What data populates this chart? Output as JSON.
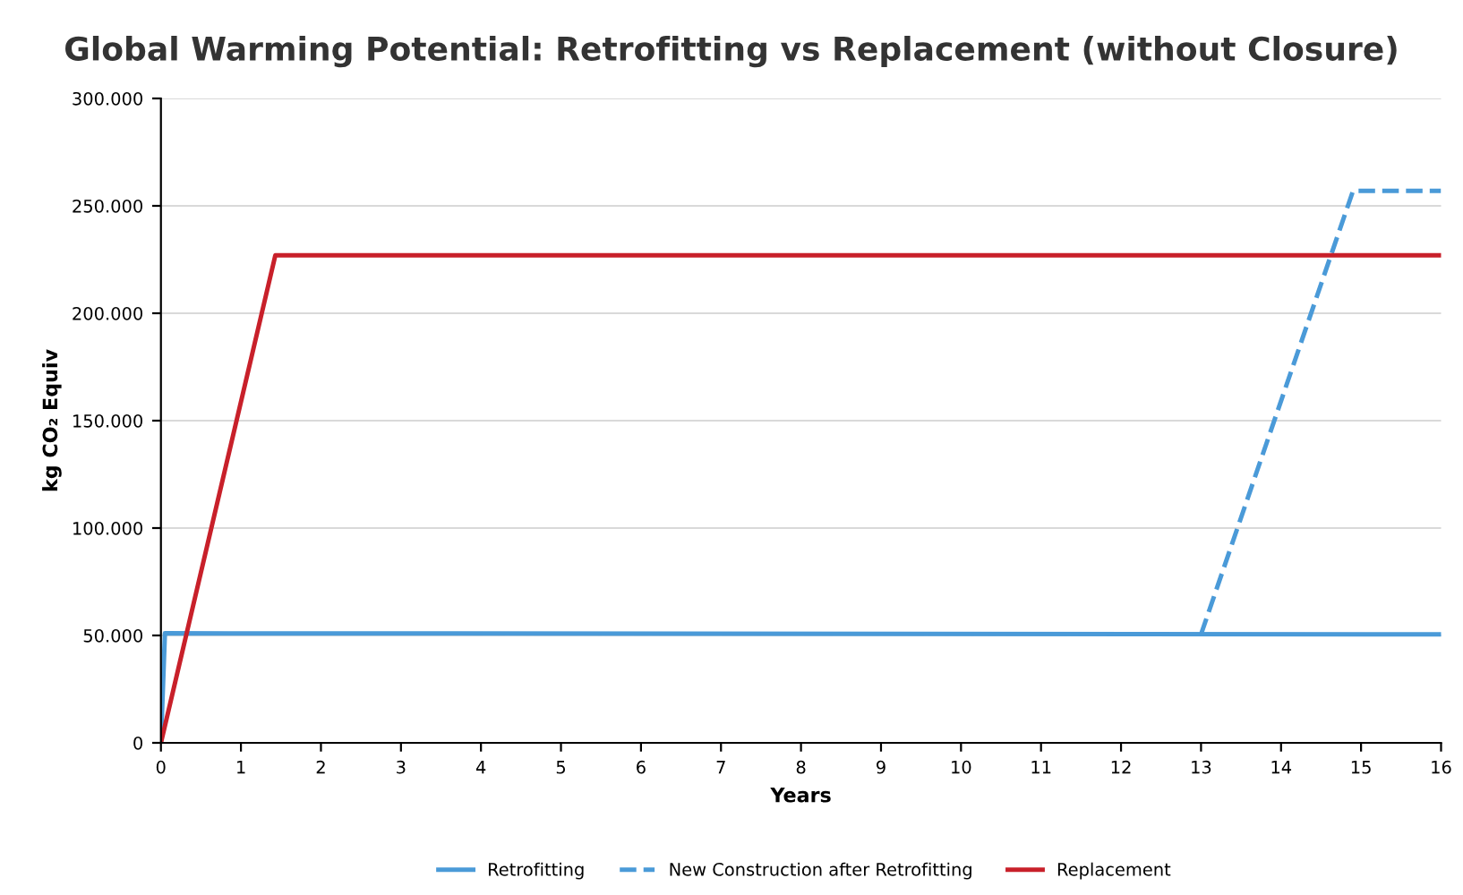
{
  "chart_data": {
    "type": "line",
    "title": "Global Warming Potential: Retrofitting vs Replacement (without Closure)",
    "xlabel": "Years",
    "ylabel": "kg CO₂ Equiv",
    "xlim": [
      0,
      16
    ],
    "xticks": [
      0,
      1,
      2,
      3,
      4,
      5,
      6,
      7,
      8,
      9,
      10,
      11,
      12,
      13,
      14,
      15,
      16
    ],
    "ylim": [
      0,
      300000
    ],
    "yticks": [
      {
        "value": 0,
        "label": "0"
      },
      {
        "value": 50000,
        "label": "50.000"
      },
      {
        "value": 100000,
        "label": "100.000"
      },
      {
        "value": 150000,
        "label": "150.000"
      },
      {
        "value": 200000,
        "label": "200.000"
      },
      {
        "value": 250000,
        "label": "250.000"
      },
      {
        "value": 300000,
        "label": "300.000"
      }
    ],
    "grid": "y",
    "legend": "bottom",
    "marker": "none",
    "series": [
      {
        "name": "Retrofitting",
        "color": "#4a9ad8",
        "line_style": "solid",
        "x": [
          0,
          0.05,
          16
        ],
        "values": [
          0,
          51000,
          50500
        ]
      },
      {
        "name": "New Construction after Retrofitting",
        "color": "#4a9ad8",
        "line_style": "dashed",
        "x": [
          13,
          14.9,
          16
        ],
        "values": [
          50500,
          257000,
          257000
        ]
      },
      {
        "name": "Replacement",
        "color": "#c8202a",
        "line_style": "solid",
        "x": [
          0,
          1.43,
          16
        ],
        "values": [
          0,
          227000,
          227000
        ]
      }
    ]
  }
}
